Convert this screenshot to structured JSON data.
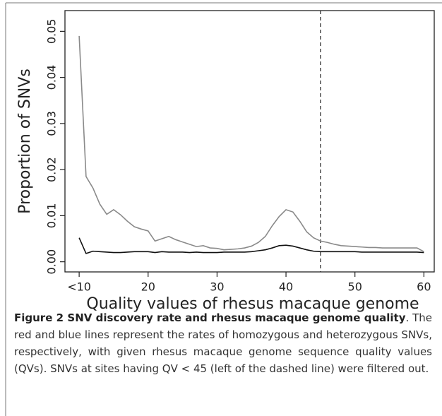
{
  "chart_data": {
    "type": "line",
    "xlabel": "Quality values of rhesus macaque genome",
    "ylabel": "Proportion of SNVs",
    "x": [
      10,
      11,
      12,
      13,
      14,
      15,
      16,
      17,
      18,
      19,
      20,
      21,
      22,
      23,
      24,
      25,
      26,
      27,
      28,
      29,
      30,
      31,
      32,
      33,
      34,
      35,
      36,
      37,
      38,
      39,
      40,
      41,
      42,
      43,
      44,
      45,
      46,
      47,
      48,
      49,
      50,
      51,
      52,
      53,
      54,
      55,
      56,
      57,
      58,
      59,
      60
    ],
    "series": [
      {
        "color": "#8a8a8a",
        "values": [
          0.049,
          0.0185,
          0.016,
          0.0125,
          0.0103,
          0.0113,
          0.0102,
          0.0088,
          0.0076,
          0.0071,
          0.0067,
          0.0045,
          0.005,
          0.0055,
          0.0048,
          0.0043,
          0.0038,
          0.0033,
          0.0035,
          0.003,
          0.0029,
          0.0026,
          0.0027,
          0.0028,
          0.003,
          0.0034,
          0.0042,
          0.0055,
          0.0078,
          0.0098,
          0.0113,
          0.0108,
          0.0088,
          0.0065,
          0.0052,
          0.0045,
          0.0042,
          0.0038,
          0.0035,
          0.0034,
          0.0033,
          0.0032,
          0.0031,
          0.0031,
          0.003,
          0.003,
          0.003,
          0.003,
          0.003,
          0.003,
          0.0022
        ]
      },
      {
        "color": "#111111",
        "values": [
          0.0052,
          0.0018,
          0.0023,
          0.0022,
          0.0021,
          0.002,
          0.002,
          0.0021,
          0.0022,
          0.0022,
          0.0022,
          0.002,
          0.0022,
          0.0021,
          0.0021,
          0.0021,
          0.002,
          0.0021,
          0.002,
          0.002,
          0.002,
          0.0021,
          0.0021,
          0.0021,
          0.0021,
          0.0022,
          0.0024,
          0.0026,
          0.003,
          0.0035,
          0.0036,
          0.0034,
          0.003,
          0.0026,
          0.0023,
          0.0022,
          0.0022,
          0.0022,
          0.0022,
          0.0022,
          0.0022,
          0.0021,
          0.0021,
          0.0021,
          0.0021,
          0.0021,
          0.0021,
          0.0021,
          0.0021,
          0.0021,
          0.002
        ]
      }
    ],
    "xlim": [
      7.94,
      61.5
    ],
    "ylim": [
      -0.0022,
      0.0545
    ],
    "xticks": [
      {
        "value": 10,
        "label": "<10"
      },
      20,
      30,
      40,
      50,
      60
    ],
    "yticks": [
      {
        "value": 0,
        "label": "0.00"
      },
      0.01,
      0.02,
      0.03,
      0.04,
      0.05
    ],
    "vline": 45
  },
  "caption": {
    "title": "Figure 2 SNV discovery rate and rhesus macaque genome quality",
    "text": ". The red and blue lines represent the rates of homozygous and heterozygous SNVs, respectively, with given rhesus macaque genome sequence quality values (QVs). SNVs at sites having QV < 45 (left of the dashed line) were filtered out."
  }
}
